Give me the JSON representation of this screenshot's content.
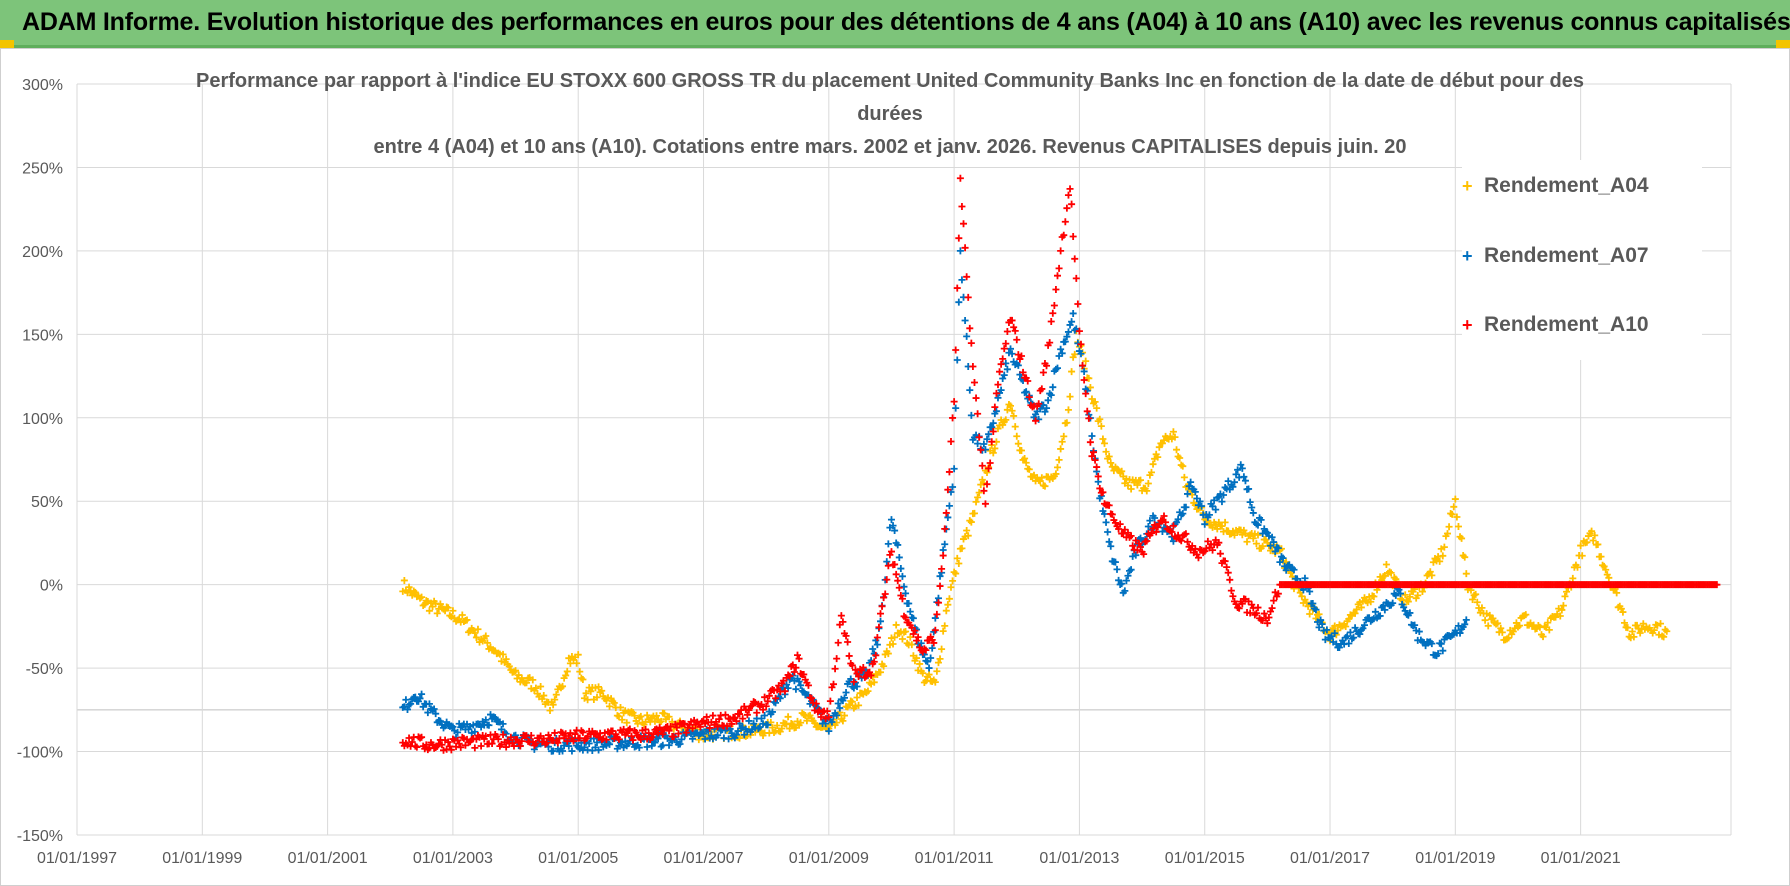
{
  "banner": {
    "title": "ADAM Informe. Evolution historique des performances en euros pour des détentions de 4 ans (A04) à 10 ans (A10) avec les revenus connus capitalisés"
  },
  "colors": {
    "A04": "#ffc000",
    "A07": "#0070c0",
    "A10": "#ff0000",
    "grid": "#d9d9d9",
    "axis_text": "#595959",
    "banner": "#7dc47a"
  },
  "chart_data": {
    "type": "scatter",
    "title_lines": [
      "Performance par rapport à l'indice EU STOXX 600 GROSS TR  du placement United Community Banks Inc en fonction de la date de début pour des",
      "durées",
      "entre 4 (A04) et 10 ans (A10). Cotations entre mars. 2002 et janv. 2026. Revenus CAPITALISES depuis juin. 20"
    ],
    "x_ticks": [
      "01/01/1997",
      "01/01/1999",
      "01/01/2001",
      "01/01/2003",
      "01/01/2005",
      "01/01/2007",
      "01/01/2009",
      "01/01/2011",
      "01/01/2013",
      "01/01/2015",
      "01/01/2017",
      "01/01/2019",
      "01/01/2021"
    ],
    "y_ticks": [
      "300%",
      "250%",
      "200%",
      "150%",
      "100%",
      "50%",
      "0%",
      "-50%",
      "-100%",
      "-150%"
    ],
    "xlim": [
      1997.0,
      2023.4
    ],
    "ylim": [
      -150,
      300
    ],
    "legend": [
      "Rendement_A04",
      "Rendement_A07",
      "Rendement_A10"
    ],
    "series": [
      {
        "name": "Rendement_A04",
        "color": "#ffc000",
        "points": [
          [
            2002.2,
            0
          ],
          [
            2002.5,
            -10
          ],
          [
            2002.8,
            -15
          ],
          [
            2003.1,
            -20
          ],
          [
            2003.4,
            -30
          ],
          [
            2003.7,
            -40
          ],
          [
            2004.0,
            -55
          ],
          [
            2004.3,
            -60
          ],
          [
            2004.6,
            -75
          ],
          [
            2004.85,
            -45
          ],
          [
            2005.0,
            -45
          ],
          [
            2005.1,
            -65
          ],
          [
            2005.4,
            -65
          ],
          [
            2005.7,
            -78
          ],
          [
            2006.0,
            -82
          ],
          [
            2006.3,
            -80
          ],
          [
            2006.6,
            -85
          ],
          [
            2007.0,
            -90
          ],
          [
            2007.4,
            -88
          ],
          [
            2007.8,
            -88
          ],
          [
            2008.2,
            -85
          ],
          [
            2008.6,
            -80
          ],
          [
            2009.0,
            -88
          ],
          [
            2009.3,
            -75
          ],
          [
            2009.6,
            -65
          ],
          [
            2009.9,
            -45
          ],
          [
            2010.1,
            -25
          ],
          [
            2010.3,
            -35
          ],
          [
            2010.5,
            -55
          ],
          [
            2010.7,
            -60
          ],
          [
            2010.9,
            -10
          ],
          [
            2011.1,
            20
          ],
          [
            2011.3,
            40
          ],
          [
            2011.6,
            80
          ],
          [
            2011.9,
            110
          ],
          [
            2012.1,
            75
          ],
          [
            2012.3,
            60
          ],
          [
            2012.6,
            65
          ],
          [
            2012.8,
            100
          ],
          [
            2012.95,
            150
          ],
          [
            2013.1,
            130
          ],
          [
            2013.3,
            100
          ],
          [
            2013.5,
            70
          ],
          [
            2013.8,
            60
          ],
          [
            2014.1,
            60
          ],
          [
            2014.3,
            85
          ],
          [
            2014.5,
            90
          ],
          [
            2014.7,
            60
          ],
          [
            2015.0,
            40
          ],
          [
            2015.3,
            35
          ],
          [
            2015.6,
            30
          ],
          [
            2015.9,
            25
          ],
          [
            2016.2,
            20
          ],
          [
            2016.5,
            -5
          ],
          [
            2016.8,
            -20
          ],
          [
            2017.0,
            -30
          ],
          [
            2017.3,
            -20
          ],
          [
            2017.6,
            -10
          ],
          [
            2017.9,
            10
          ],
          [
            2018.2,
            -10
          ],
          [
            2018.5,
            0
          ],
          [
            2018.8,
            20
          ],
          [
            2019.0,
            50
          ],
          [
            2019.2,
            0
          ],
          [
            2019.5,
            -20
          ],
          [
            2019.8,
            -30
          ],
          [
            2020.1,
            -20
          ],
          [
            2020.4,
            -30
          ],
          [
            2020.7,
            -15
          ],
          [
            2021.0,
            20
          ],
          [
            2021.2,
            30
          ],
          [
            2021.4,
            10
          ],
          [
            2021.6,
            -10
          ],
          [
            2021.8,
            -30
          ],
          [
            2022.0,
            -25
          ],
          [
            2022.2,
            -25
          ],
          [
            2022.4,
            -30
          ]
        ]
      },
      {
        "name": "Rendement_A07",
        "color": "#0070c0",
        "points": [
          [
            2002.2,
            -75
          ],
          [
            2002.4,
            -65
          ],
          [
            2002.7,
            -78
          ],
          [
            2003.0,
            -88
          ],
          [
            2003.3,
            -85
          ],
          [
            2003.6,
            -80
          ],
          [
            2003.9,
            -90
          ],
          [
            2004.2,
            -95
          ],
          [
            2004.6,
            -96
          ],
          [
            2005.0,
            -96
          ],
          [
            2005.5,
            -95
          ],
          [
            2006.0,
            -94
          ],
          [
            2006.5,
            -93
          ],
          [
            2007.0,
            -90
          ],
          [
            2007.5,
            -88
          ],
          [
            2008.0,
            -82
          ],
          [
            2008.4,
            -55
          ],
          [
            2008.7,
            -70
          ],
          [
            2009.0,
            -85
          ],
          [
            2009.3,
            -60
          ],
          [
            2009.6,
            -55
          ],
          [
            2009.8,
            -30
          ],
          [
            2010.0,
            40
          ],
          [
            2010.2,
            0
          ],
          [
            2010.4,
            -30
          ],
          [
            2010.6,
            -50
          ],
          [
            2010.8,
            10
          ],
          [
            2011.0,
            70
          ],
          [
            2011.1,
            200
          ],
          [
            2011.3,
            90
          ],
          [
            2011.5,
            80
          ],
          [
            2011.7,
            110
          ],
          [
            2011.9,
            140
          ],
          [
            2012.1,
            120
          ],
          [
            2012.3,
            100
          ],
          [
            2012.5,
            110
          ],
          [
            2012.7,
            140
          ],
          [
            2012.9,
            160
          ],
          [
            2013.1,
            120
          ],
          [
            2013.3,
            60
          ],
          [
            2013.5,
            20
          ],
          [
            2013.7,
            -5
          ],
          [
            2013.9,
            20
          ],
          [
            2014.2,
            40
          ],
          [
            2014.5,
            30
          ],
          [
            2014.8,
            60
          ],
          [
            2015.0,
            40
          ],
          [
            2015.3,
            55
          ],
          [
            2015.6,
            70
          ],
          [
            2015.8,
            40
          ],
          [
            2016.0,
            30
          ],
          [
            2016.3,
            10
          ],
          [
            2016.6,
            0
          ],
          [
            2016.9,
            -30
          ],
          [
            2017.2,
            -35
          ],
          [
            2017.5,
            -25
          ],
          [
            2017.8,
            -15
          ],
          [
            2018.1,
            -5
          ],
          [
            2018.4,
            -30
          ],
          [
            2018.7,
            -40
          ],
          [
            2019.0,
            -30
          ],
          [
            2019.2,
            -20
          ]
        ]
      },
      {
        "name": "Rendement_A10",
        "color": "#ff0000",
        "points": [
          [
            2002.2,
            -93
          ],
          [
            2002.6,
            -96
          ],
          [
            2003.0,
            -95
          ],
          [
            2003.5,
            -94
          ],
          [
            2004.0,
            -93
          ],
          [
            2004.5,
            -93
          ],
          [
            2005.0,
            -91
          ],
          [
            2005.5,
            -90
          ],
          [
            2006.0,
            -90
          ],
          [
            2006.5,
            -88
          ],
          [
            2007.0,
            -83
          ],
          [
            2007.5,
            -80
          ],
          [
            2008.0,
            -70
          ],
          [
            2008.3,
            -60
          ],
          [
            2008.5,
            -45
          ],
          [
            2008.8,
            -75
          ],
          [
            2009.0,
            -78
          ],
          [
            2009.2,
            -20
          ],
          [
            2009.4,
            -55
          ],
          [
            2009.7,
            -50
          ],
          [
            2010.0,
            20
          ],
          [
            2010.2,
            -15
          ],
          [
            2010.5,
            -40
          ],
          [
            2010.7,
            -30
          ],
          [
            2010.85,
            30
          ],
          [
            2011.0,
            110
          ],
          [
            2011.1,
            240
          ],
          [
            2011.3,
            130
          ],
          [
            2011.5,
            50
          ],
          [
            2011.7,
            120
          ],
          [
            2011.9,
            160
          ],
          [
            2012.1,
            130
          ],
          [
            2012.3,
            100
          ],
          [
            2012.5,
            140
          ],
          [
            2012.7,
            200
          ],
          [
            2012.85,
            240
          ],
          [
            2013.0,
            150
          ],
          [
            2013.2,
            80
          ],
          [
            2013.4,
            50
          ],
          [
            2013.7,
            30
          ],
          [
            2014.0,
            20
          ],
          [
            2014.3,
            40
          ],
          [
            2014.6,
            30
          ],
          [
            2014.9,
            20
          ],
          [
            2015.2,
            25
          ],
          [
            2015.5,
            -10
          ],
          [
            2015.8,
            -15
          ],
          [
            2016.0,
            -20
          ],
          [
            2016.2,
            0
          ],
          [
            2016.5,
            0
          ],
          [
            2017.0,
            0
          ],
          [
            2018.0,
            0
          ],
          [
            2019.0,
            0
          ],
          [
            2020.0,
            0
          ],
          [
            2021.0,
            0
          ],
          [
            2022.0,
            0
          ],
          [
            2023.2,
            0
          ]
        ]
      }
    ]
  }
}
